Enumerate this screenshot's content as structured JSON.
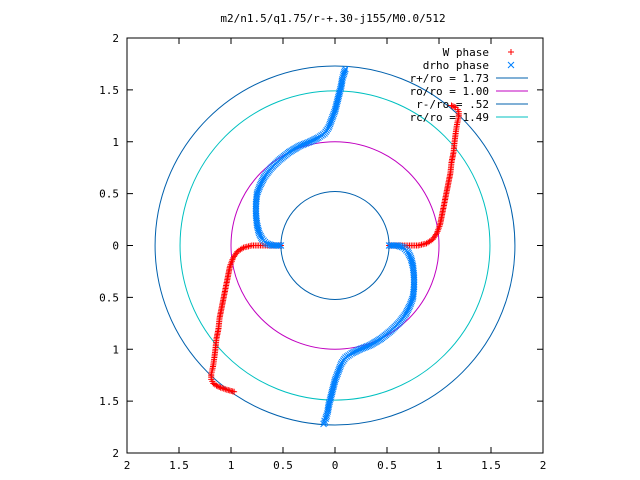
{
  "chart_data": {
    "type": "scatter",
    "title": "m2/n1.5/q1.75/r-+.30-j155/M0.0/512",
    "xlim": [
      -2,
      2
    ],
    "ylim": [
      -2,
      2
    ],
    "x_tick_labels": [
      "2",
      "1.5",
      "1",
      "0.5",
      "0",
      "0.5",
      "1",
      "1.5",
      "2"
    ],
    "y_tick_labels": [
      "2",
      "1.5",
      "1",
      "0.5",
      "0",
      "0.5",
      "1",
      "1.5",
      "2"
    ],
    "grid": false,
    "legend_position": "top-right",
    "series": [
      {
        "name": "W phase",
        "marker": "+",
        "color": "#ff0000",
        "x": [
          -0.52,
          -0.6,
          -0.7,
          -0.8,
          -0.88,
          -0.94,
          -0.98,
          -1.01,
          -1.03,
          -1.05,
          -1.07,
          -1.09,
          -1.11,
          -1.12,
          -1.14,
          -1.15,
          -1.16,
          -1.17,
          -1.18,
          -1.19,
          -1.19,
          -1.19,
          -1.18,
          -1.17,
          -1.14,
          -1.1,
          -1.04,
          -0.97,
          0.52,
          0.6,
          0.7,
          0.8,
          0.88,
          0.94,
          0.98,
          1.01,
          1.03,
          1.05,
          1.07,
          1.09,
          1.11,
          1.12,
          1.14,
          1.15,
          1.16,
          1.17,
          1.18,
          1.19,
          1.19,
          1.19,
          1.18,
          1.16,
          1.12
        ],
        "y": [
          0.0,
          0.0,
          0.0,
          0.0,
          -0.02,
          -0.06,
          -0.12,
          -0.2,
          -0.3,
          -0.4,
          -0.5,
          -0.6,
          -0.7,
          -0.8,
          -0.9,
          -1.0,
          -1.08,
          -1.15,
          -1.2,
          -1.24,
          -1.27,
          -1.29,
          -1.31,
          -1.33,
          -1.35,
          -1.37,
          -1.39,
          -1.41,
          0.0,
          0.0,
          0.0,
          0.0,
          0.02,
          0.06,
          0.12,
          0.2,
          0.3,
          0.4,
          0.5,
          0.6,
          0.7,
          0.8,
          0.9,
          1.0,
          1.08,
          1.15,
          1.2,
          1.24,
          1.27,
          1.29,
          1.31,
          1.33,
          1.35
        ]
      },
      {
        "name": "drho phase",
        "marker": "x",
        "color": "#0080ff",
        "x": [
          0.52,
          0.6,
          0.66,
          0.7,
          0.73,
          0.75,
          0.76,
          0.76,
          0.75,
          0.72,
          0.68,
          0.62,
          0.54,
          0.44,
          0.34,
          0.24,
          0.16,
          0.1,
          0.06,
          0.03,
          0.0,
          -0.02,
          -0.04,
          -0.06,
          -0.07,
          -0.08,
          -0.09,
          -0.1,
          -0.1,
          -0.11,
          -0.52,
          -0.6,
          -0.66,
          -0.7,
          -0.73,
          -0.75,
          -0.76,
          -0.76,
          -0.75,
          -0.72,
          -0.68,
          -0.62,
          -0.54,
          -0.44,
          -0.34,
          -0.24,
          -0.16,
          -0.1,
          -0.06,
          -0.03,
          0.0,
          0.02,
          0.04,
          0.06,
          0.07,
          0.08,
          0.09,
          0.1
        ],
        "y": [
          0.0,
          0.0,
          -0.02,
          -0.06,
          -0.12,
          -0.2,
          -0.3,
          -0.4,
          -0.5,
          -0.58,
          -0.66,
          -0.74,
          -0.82,
          -0.9,
          -0.96,
          -1.0,
          -1.04,
          -1.08,
          -1.14,
          -1.22,
          -1.3,
          -1.38,
          -1.46,
          -1.54,
          -1.6,
          -1.64,
          -1.67,
          -1.69,
          -1.71,
          -1.72,
          0.0,
          0.0,
          0.02,
          0.06,
          0.12,
          0.2,
          0.3,
          0.4,
          0.5,
          0.58,
          0.66,
          0.74,
          0.82,
          0.9,
          0.96,
          1.0,
          1.04,
          1.08,
          1.14,
          1.22,
          1.3,
          1.38,
          1.46,
          1.54,
          1.6,
          1.64,
          1.67,
          1.7
        ]
      },
      {
        "name": "r+/ro = 1.73",
        "kind": "circle",
        "radius": 1.73,
        "color": "#0060ad"
      },
      {
        "name": "ro/ro = 1.00",
        "kind": "circle",
        "radius": 1.0,
        "color": "#c000c0"
      },
      {
        "name": "r-/ro = .52",
        "kind": "circle",
        "radius": 0.52,
        "color": "#0060ad"
      },
      {
        "name": "rc/ro = 1.49",
        "kind": "circle",
        "radius": 1.49,
        "color": "#00c0c0"
      }
    ]
  }
}
